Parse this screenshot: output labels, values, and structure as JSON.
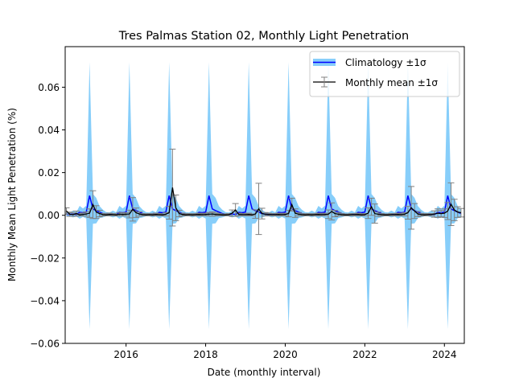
{
  "chart_data": {
    "type": "line",
    "title": "Tres Palmas Station 02, Monthly Light Penetration",
    "xlabel": "Date (monthly interval)",
    "ylabel": "Monthly Mean Light Penetration (%)",
    "xlim": [
      2014.47,
      2024.5
    ],
    "ylim": [
      -0.06,
      0.079
    ],
    "xticks": [
      2016,
      2018,
      2020,
      2022,
      2024
    ],
    "xtick_labels": [
      "2016",
      "2018",
      "2020",
      "2022",
      "2024"
    ],
    "yticks": [
      -0.06,
      -0.04,
      -0.02,
      0.0,
      0.02,
      0.04,
      0.06
    ],
    "ytick_labels": [
      "−0.06",
      "−0.04",
      "−0.02",
      "0.00",
      "0.02",
      "0.04",
      "0.06"
    ],
    "grid": false,
    "legend": {
      "position": "top-right",
      "entries": [
        {
          "label": "Climatology ±1σ",
          "line_color": "#0000ff",
          "band_color": "#87cefa"
        },
        {
          "label": "Monthly mean ±1σ",
          "line_color": "#000000",
          "errorbar_color": "#808080"
        }
      ]
    },
    "start": {
      "year": 2014,
      "month": 7
    },
    "n_months": 120,
    "climatology": {
      "color": "#0000ff",
      "band_color": "#87cefa",
      "monthly_mean": [
        0.0015,
        0.0092,
        0.003,
        0.0022,
        0.0015,
        0.0008,
        0.0005,
        0.0004,
        0.0006,
        0.0004,
        0.0014,
        0.0012
      ],
      "monthly_std": [
        0.003,
        0.0625,
        0.007,
        0.006,
        0.0028,
        0.0018,
        0.001,
        0.0009,
        0.0016,
        0.001,
        0.003,
        0.002
      ]
    },
    "monthly_mean": {
      "color": "#000000",
      "errorbar_color": "#808080",
      "values": [
        0.002,
        0.0005,
        0.0003,
        0.0008,
        0.0002,
        0.0004,
        0.0006,
        0.001,
        0.005,
        0.0015,
        0.0008,
        0.0003,
        0.0002,
        0.0004,
        0.0003,
        0.0002,
        0.0005,
        0.0004,
        0.0005,
        0.0006,
        0.0028,
        0.0012,
        0.0006,
        0.0003,
        0.0002,
        0.0003,
        0.0002,
        0.0004,
        0.0003,
        0.0002,
        0.0005,
        0.0012,
        0.013,
        0.0035,
        0.0008,
        0.0004,
        0.0002,
        0.0003,
        0.0002,
        0.0003,
        0.0004,
        0.0003,
        0.0004,
        0.0005,
        0.0006,
        0.0004,
        0.0003,
        0.0002,
        0.0002,
        0.0003,
        0.001,
        0.0025,
        0.0004,
        0.0003,
        0.0003,
        0.0004,
        0.0002,
        0.0006,
        0.003,
        0.0008,
        0.0005,
        0.0004,
        0.0003,
        0.0003,
        0.0004,
        0.0003,
        0.0004,
        0.0008,
        0.005,
        0.001,
        0.0005,
        0.0003,
        0.0002,
        0.0003,
        0.0002,
        0.0003,
        0.0004,
        0.0003,
        0.0004,
        0.0005,
        0.0018,
        0.0008,
        0.0005,
        0.0003,
        0.0002,
        0.0002,
        0.0003,
        0.0003,
        0.0004,
        0.0002,
        0.0003,
        0.001,
        0.004,
        0.0008,
        0.0005,
        0.0003,
        0.0002,
        0.0002,
        0.0003,
        0.0003,
        0.0004,
        0.0003,
        0.0005,
        0.0012,
        0.0035,
        0.002,
        0.0006,
        0.0003,
        0.0002,
        0.0003,
        0.0003,
        0.0006,
        0.001,
        0.0008,
        0.001,
        0.002,
        0.0052,
        0.0025,
        0.0015,
        0.0012
      ],
      "errors": [
        0.0015,
        0.001,
        0.0008,
        0.0012,
        0.0005,
        0.0007,
        0.001,
        0.002,
        0.0065,
        0.003,
        0.0015,
        0.0006,
        0.0004,
        0.0006,
        0.0005,
        0.0004,
        0.0008,
        0.0006,
        0.0008,
        0.0018,
        0.0055,
        0.0022,
        0.001,
        0.0005,
        0.0004,
        0.0005,
        0.0004,
        0.0006,
        0.0005,
        0.0004,
        0.0008,
        0.003,
        0.018,
        0.006,
        0.0015,
        0.0006,
        0.0004,
        0.0005,
        0.0004,
        0.0005,
        0.0006,
        0.0005,
        0.0006,
        0.0008,
        0.001,
        0.0007,
        0.0005,
        0.0004,
        0.0004,
        0.0005,
        0.0015,
        0.003,
        0.0006,
        0.0005,
        0.0005,
        0.0006,
        0.0004,
        0.002,
        0.012,
        0.0025,
        0.0008,
        0.0006,
        0.0005,
        0.0005,
        0.0006,
        0.0005,
        0.0006,
        0.0015,
        0.003,
        0.002,
        0.0008,
        0.0005,
        0.0004,
        0.0005,
        0.0004,
        0.0005,
        0.0006,
        0.0005,
        0.0006,
        0.002,
        0.004,
        0.0015,
        0.0008,
        0.0005,
        0.0004,
        0.0004,
        0.0005,
        0.0005,
        0.0006,
        0.0004,
        0.0005,
        0.0025,
        0.004,
        0.0045,
        0.001,
        0.0005,
        0.0004,
        0.0004,
        0.0005,
        0.0005,
        0.0006,
        0.0005,
        0.0008,
        0.003,
        0.01,
        0.0035,
        0.0012,
        0.0006,
        0.0004,
        0.0005,
        0.0005,
        0.0015,
        0.002,
        0.0015,
        0.002,
        0.004,
        0.01,
        0.005,
        0.0025,
        0.002
      ]
    }
  }
}
